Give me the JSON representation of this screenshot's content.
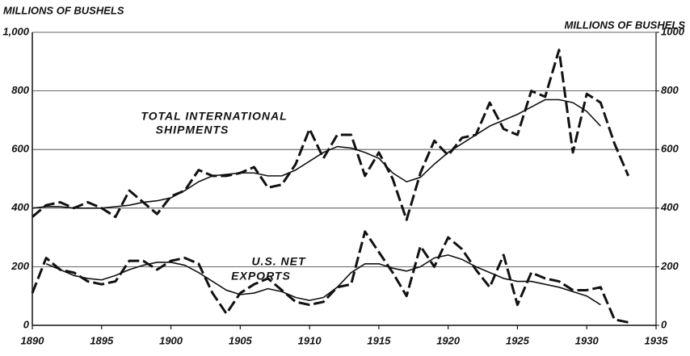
{
  "chart_data": {
    "type": "line",
    "y_label": "MILLIONS OF BUSHELS",
    "y2_label": "MILLIONS OF BUSHELS",
    "annotations": [
      "TOTAL INTERNATIONAL",
      "SHIPMENTS",
      "U.S. NET",
      "EXPORTS"
    ],
    "x": [
      1890,
      1891,
      1892,
      1893,
      1894,
      1895,
      1896,
      1897,
      1898,
      1899,
      1900,
      1901,
      1902,
      1903,
      1904,
      1905,
      1906,
      1907,
      1908,
      1909,
      1910,
      1911,
      1912,
      1913,
      1914,
      1915,
      1916,
      1917,
      1918,
      1919,
      1920,
      1921,
      1922,
      1923,
      1924,
      1925,
      1926,
      1927,
      1928,
      1929,
      1930,
      1931,
      1932,
      1933
    ],
    "series": [
      {
        "color": "#111",
        "style": "dashed",
        "values": [
          370,
          410,
          420,
          400,
          420,
          400,
          370,
          460,
          420,
          380,
          440,
          460,
          530,
          510,
          510,
          520,
          540,
          470,
          480,
          550,
          670,
          570,
          650,
          650,
          510,
          590,
          500,
          360,
          520,
          630,
          580,
          640,
          650,
          760,
          670,
          650,
          800,
          780,
          940,
          590,
          790,
          760,
          620,
          510
        ]
      },
      {
        "color": "#111",
        "style": "solid",
        "values": [
          400,
          405,
          405,
          400,
          400,
          400,
          405,
          410,
          420,
          425,
          435,
          460,
          490,
          510,
          515,
          520,
          520,
          510,
          510,
          530,
          560,
          590,
          610,
          605,
          590,
          570,
          520,
          490,
          505,
          550,
          590,
          620,
          650,
          680,
          700,
          720,
          745,
          770,
          770,
          760,
          730,
          680,
          null,
          null
        ]
      },
      {
        "color": "#111",
        "style": "dashed",
        "values": [
          110,
          230,
          190,
          180,
          150,
          140,
          150,
          220,
          220,
          190,
          220,
          230,
          210,
          110,
          40,
          110,
          140,
          160,
          120,
          80,
          70,
          80,
          130,
          140,
          320,
          250,
          180,
          100,
          270,
          200,
          300,
          260,
          190,
          130,
          240,
          70,
          180,
          160,
          150,
          120,
          120,
          130,
          20,
          10
        ]
      },
      {
        "color": "#111",
        "style": "solid",
        "values": [
          null,
          210,
          190,
          170,
          160,
          155,
          170,
          190,
          205,
          215,
          215,
          205,
          180,
          150,
          120,
          105,
          110,
          125,
          115,
          95,
          85,
          95,
          130,
          180,
          210,
          210,
          195,
          185,
          200,
          230,
          240,
          225,
          200,
          180,
          160,
          150,
          150,
          140,
          130,
          115,
          100,
          70,
          null,
          null
        ]
      }
    ],
    "xlim": [
      1890,
      1935
    ],
    "xticks": [
      1890,
      1895,
      1900,
      1905,
      1910,
      1915,
      1920,
      1925,
      1930,
      1935
    ],
    "ylim": [
      0,
      1000
    ],
    "yticks": [
      0,
      200,
      400,
      600,
      800,
      {
        "value": 1000,
        "label": "1,000"
      }
    ],
    "y2lim": [
      0,
      1000
    ],
    "y2ticks": [
      0,
      200,
      400,
      600,
      800,
      1000
    ],
    "grid": true
  }
}
